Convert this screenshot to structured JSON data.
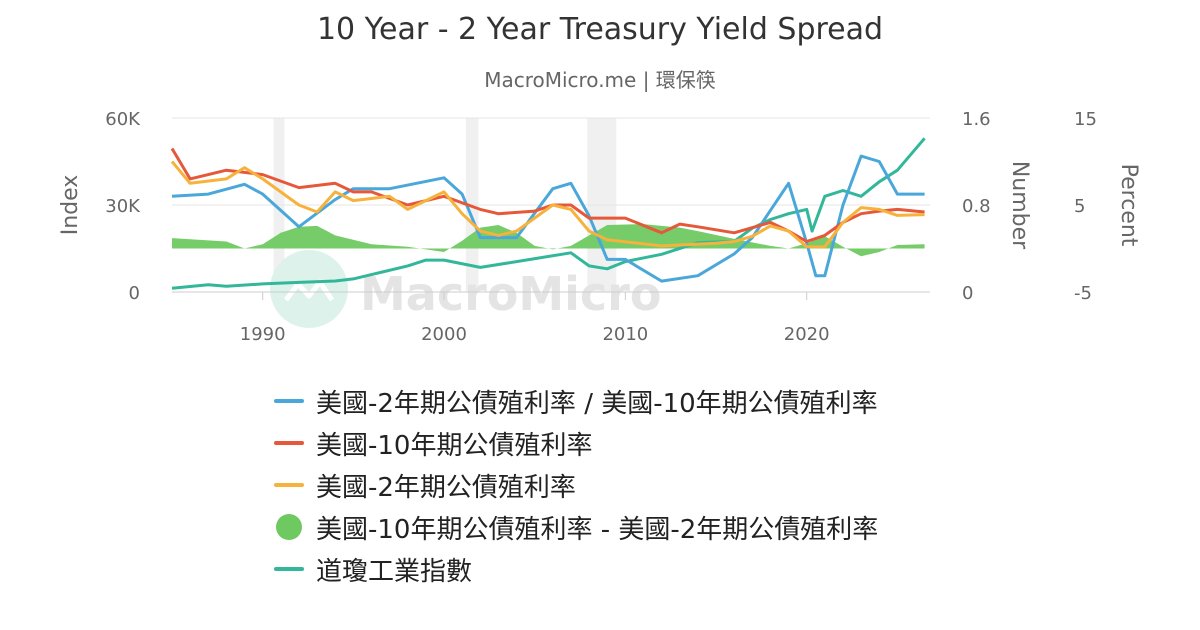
{
  "chart_data": {
    "type": "line",
    "title": "10 Year - 2 Year Treasury Yield Spread",
    "subtitle": "MacroMicro.me | 環保筷",
    "watermark": "MacroMicro",
    "x_ticks": [
      "1990",
      "2000",
      "2010",
      "2020"
    ],
    "xlim": [
      1985,
      2026.8
    ],
    "axes": [
      {
        "id": "index",
        "title": "Index",
        "position": "left",
        "ticks": [
          "0",
          "30K",
          "60K"
        ],
        "ylim": [
          0,
          60000
        ]
      },
      {
        "id": "number",
        "title": "Number",
        "position": "right",
        "ticks": [
          "0",
          "0.8",
          "1.6"
        ],
        "ylim": [
          0,
          1.6
        ]
      },
      {
        "id": "percent",
        "title": "Percent",
        "position": "right",
        "ticks": [
          "-5",
          "5",
          "15"
        ],
        "ylim": [
          -5,
          15
        ]
      }
    ],
    "recession_bands": [
      [
        1990.6,
        1991.2
      ],
      [
        2001.2,
        2001.9
      ],
      [
        2007.9,
        2009.5
      ]
    ],
    "legend_position": "bottom",
    "series": [
      {
        "name": "美國-2年期公債殖利率 / 美國-10年期公債殖利率",
        "type": "line",
        "axis": "number",
        "color": "#4aa7d9",
        "x": [
          1985,
          1987,
          1989,
          1990,
          1992,
          1994,
          1995,
          1997,
          2000,
          2001,
          2002,
          2004,
          2006,
          2007,
          2008,
          2009,
          2010,
          2012,
          2014,
          2016,
          2017,
          2018,
          2019,
          2020,
          2020.5,
          2021,
          2022,
          2023,
          2024,
          2025,
          2026.5
        ],
        "values": [
          0.88,
          0.9,
          0.99,
          0.9,
          0.6,
          0.85,
          0.95,
          0.95,
          1.05,
          0.9,
          0.5,
          0.5,
          0.95,
          1.0,
          0.7,
          0.3,
          0.3,
          0.1,
          0.15,
          0.35,
          0.5,
          0.75,
          1.0,
          0.45,
          0.15,
          0.15,
          0.8,
          1.25,
          1.2,
          0.9,
          0.9
        ]
      },
      {
        "name": "美國-10年期公債殖利率",
        "type": "line",
        "axis": "percent",
        "color": "#e65839",
        "x": [
          1985,
          1986,
          1988,
          1990,
          1992,
          1994,
          1995,
          1996,
          1998,
          2000,
          2002,
          2003,
          2005,
          2006,
          2007,
          2008,
          2010,
          2012,
          2013,
          2014,
          2016,
          2018,
          2019,
          2020,
          2021,
          2022,
          2023,
          2024,
          2025,
          2026.5
        ],
        "values": [
          11.5,
          8.0,
          9.0,
          8.5,
          7.0,
          7.5,
          6.5,
          6.5,
          5.0,
          6.0,
          4.5,
          4.0,
          4.3,
          5.0,
          5.0,
          3.5,
          3.5,
          1.8,
          2.8,
          2.5,
          1.8,
          3.0,
          2.0,
          0.8,
          1.5,
          3.0,
          4.0,
          4.3,
          4.5,
          4.2
        ]
      },
      {
        "name": "美國-2年期公債殖利率",
        "type": "line",
        "axis": "percent",
        "color": "#f6b23c",
        "x": [
          1985,
          1986,
          1988,
          1989,
          1990,
          1992,
          1993,
          1994,
          1995,
          1997,
          1998,
          2000,
          2001,
          2002,
          2003,
          2004,
          2006,
          2007,
          2008,
          2009,
          2012,
          2015,
          2016,
          2017,
          2018,
          2019,
          2020,
          2021,
          2022,
          2023,
          2024,
          2025,
          2026.5
        ],
        "values": [
          10.0,
          7.5,
          8.0,
          9.3,
          8.0,
          5.0,
          4.2,
          6.5,
          5.5,
          6.0,
          4.5,
          6.5,
          4.0,
          2.0,
          1.5,
          2.0,
          5.0,
          4.5,
          2.0,
          1.0,
          0.3,
          0.6,
          0.8,
          1.4,
          2.6,
          2.0,
          0.2,
          0.2,
          3.0,
          4.7,
          4.5,
          3.8,
          3.9
        ]
      },
      {
        "name": "美國-10年期公債殖利率 - 美國-2年期公債殖利率",
        "type": "area",
        "axis": "percent",
        "color": "#6fc961",
        "x": [
          1985,
          1988,
          1989,
          1990,
          1991,
          1992,
          1993,
          1994,
          1996,
          1998,
          2000,
          2001,
          2002,
          2003,
          2004,
          2005,
          2006,
          2007,
          2008,
          2009,
          2011,
          2013,
          2014,
          2016,
          2018,
          2019,
          2020,
          2021,
          2022,
          2023,
          2024,
          2025,
          2026.5
        ],
        "values": [
          1.2,
          0.8,
          0.0,
          0.5,
          1.8,
          2.5,
          2.6,
          1.5,
          0.5,
          0.2,
          -0.4,
          0.9,
          2.4,
          2.7,
          1.8,
          0.3,
          -0.1,
          0.3,
          1.5,
          2.7,
          2.8,
          2.4,
          2.0,
          1.1,
          0.3,
          0.0,
          0.6,
          1.4,
          0.2,
          -0.9,
          -0.4,
          0.4,
          0.5
        ]
      },
      {
        "name": "道瓊工業指數",
        "type": "line",
        "axis": "index",
        "color": "#33b79a",
        "x": [
          1985,
          1987,
          1988,
          1990,
          1992,
          1994,
          1995,
          1996,
          1998,
          1999,
          2000,
          2002,
          2004,
          2007,
          2008,
          2009,
          2010,
          2012,
          2014,
          2016,
          2017,
          2018,
          2019,
          2020,
          2020.3,
          2021,
          2022,
          2023,
          2024,
          2025,
          2026.5
        ],
        "values": [
          1300,
          2500,
          2000,
          2800,
          3300,
          3800,
          4500,
          6000,
          9000,
          11000,
          11000,
          8500,
          10500,
          13500,
          9000,
          8000,
          10500,
          13000,
          17000,
          17500,
          22000,
          25000,
          27000,
          28500,
          21000,
          33000,
          35000,
          33000,
          38000,
          42000,
          53000
        ]
      }
    ]
  },
  "legend": {
    "items": [
      {
        "label": "美國-2年期公債殖利率 / 美國-10年期公債殖利率",
        "color": "#4aa7d9",
        "marker": "line"
      },
      {
        "label": "美國-10年期公債殖利率",
        "color": "#e65839",
        "marker": "line"
      },
      {
        "label": "美國-2年期公債殖利率",
        "color": "#f6b23c",
        "marker": "line"
      },
      {
        "label": "美國-10年期公債殖利率 - 美國-2年期公債殖利率",
        "color": "#6fc961",
        "marker": "circle"
      },
      {
        "label": "道瓊工業指數",
        "color": "#33b79a",
        "marker": "line"
      }
    ]
  }
}
